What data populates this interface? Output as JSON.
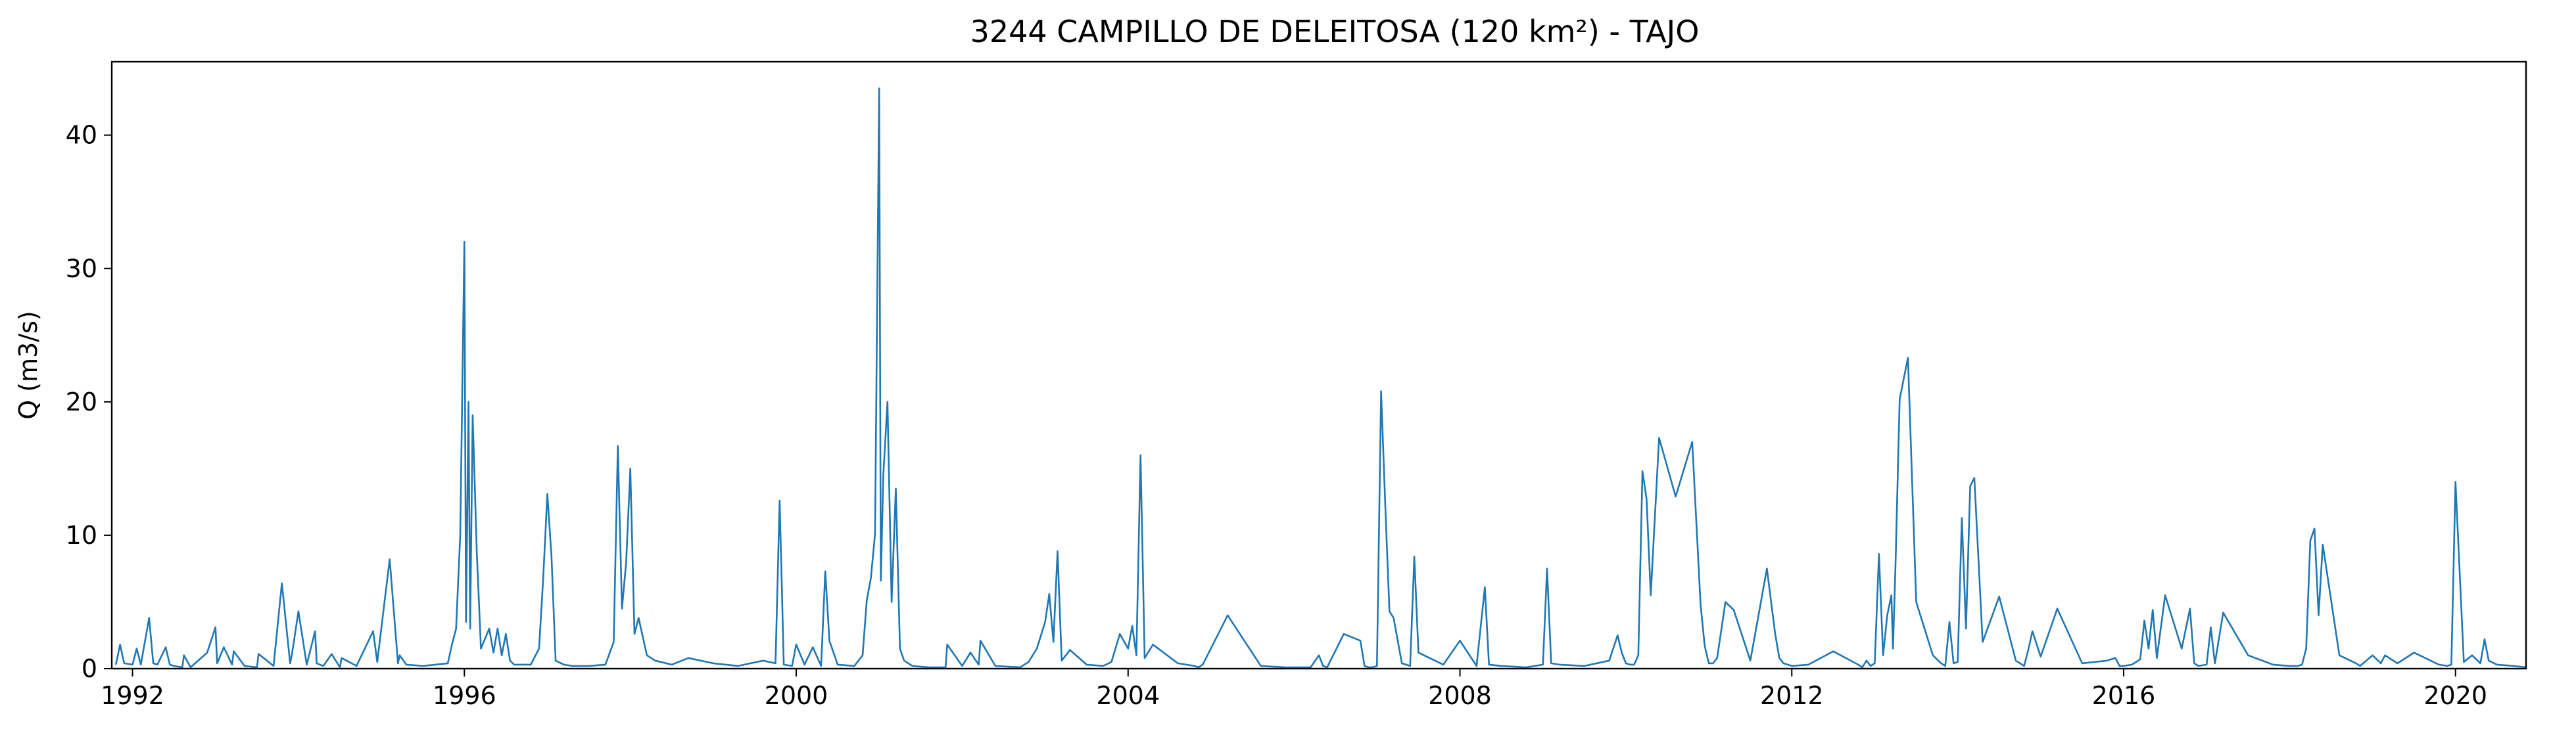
{
  "chart_data": {
    "type": "line",
    "title": "3244 CAMPILLO DE DELEITOSA (120 km²) - TAJO",
    "xlabel": "",
    "ylabel": "Q (m3/s)",
    "xlim": [
      1991.75,
      2020.85
    ],
    "ylim": [
      0,
      45.5
    ],
    "x_ticks": [
      1992,
      1996,
      2000,
      2004,
      2008,
      2012,
      2016,
      2020
    ],
    "y_ticks": [
      0,
      10,
      20,
      30,
      40
    ],
    "grid": false,
    "legend": "none",
    "color": "#1f77b4",
    "series": [
      {
        "x": [
          1991.8,
          1991.85,
          1991.9,
          1992.0,
          1992.05,
          1992.1,
          1992.2,
          1992.25,
          1992.3,
          1992.4,
          1992.45,
          1992.5,
          1992.6,
          1992.62,
          1992.7,
          1992.9,
          1993.0,
          1993.02,
          1993.1,
          1993.2,
          1993.22,
          1993.35,
          1993.5,
          1993.52,
          1993.7,
          1993.8,
          1993.9,
          1993.92,
          1994.0,
          1994.1,
          1994.2,
          1994.22,
          1994.3,
          1994.4,
          1994.5,
          1994.52,
          1994.7,
          1994.9,
          1994.95,
          1995.1,
          1995.2,
          1995.22,
          1995.3,
          1995.5,
          1995.8,
          1995.85,
          1995.9,
          1995.95,
          1996.0,
          1996.02,
          1996.05,
          1996.07,
          1996.1,
          1996.15,
          1996.2,
          1996.3,
          1996.35,
          1996.4,
          1996.45,
          1996.5,
          1996.55,
          1996.6,
          1996.8,
          1996.9,
          1996.95,
          1997.0,
          1997.05,
          1997.1,
          1997.2,
          1997.3,
          1997.5,
          1997.7,
          1997.8,
          1997.85,
          1997.9,
          1997.95,
          1998.0,
          1998.05,
          1998.1,
          1998.2,
          1998.3,
          1998.5,
          1998.7,
          1999.0,
          1999.3,
          1999.6,
          1999.75,
          1999.8,
          1999.85,
          1999.95,
          2000.0,
          2000.1,
          2000.2,
          2000.3,
          2000.35,
          2000.4,
          2000.5,
          2000.7,
          2000.8,
          2000.85,
          2000.9,
          2000.95,
          2001.0,
          2001.02,
          2001.05,
          2001.1,
          2001.15,
          2001.2,
          2001.25,
          2001.3,
          2001.4,
          2001.6,
          2001.8,
          2001.82,
          2002.0,
          2002.1,
          2002.2,
          2002.22,
          2002.4,
          2002.7,
          2002.8,
          2002.9,
          2003.0,
          2003.05,
          2003.1,
          2003.15,
          2003.2,
          2003.3,
          2003.5,
          2003.7,
          2003.8,
          2003.9,
          2004.0,
          2004.05,
          2004.1,
          2004.15,
          2004.2,
          2004.3,
          2004.6,
          2004.8,
          2004.85,
          2004.9,
          2005.2,
          2005.6,
          2005.9,
          2006.0,
          2006.2,
          2006.3,
          2006.35,
          2006.4,
          2006.6,
          2006.8,
          2006.85,
          2006.9,
          2006.95,
          2007.0,
          2007.05,
          2007.1,
          2007.15,
          2007.2,
          2007.3,
          2007.4,
          2007.45,
          2007.5,
          2007.8,
          2008.0,
          2008.2,
          2008.3,
          2008.35,
          2008.5,
          2008.8,
          2009.0,
          2009.05,
          2009.1,
          2009.2,
          2009.5,
          2009.8,
          2009.9,
          2009.95,
          2010.0,
          2010.05,
          2010.1,
          2010.15,
          2010.2,
          2010.25,
          2010.3,
          2010.4,
          2010.6,
          2010.8,
          2010.9,
          2010.95,
          2011.0,
          2011.05,
          2011.1,
          2011.2,
          2011.3,
          2011.5,
          2011.7,
          2011.8,
          2011.85,
          2011.9,
          2012.0,
          2012.2,
          2012.5,
          2012.8,
          2012.85,
          2012.9,
          2012.95,
          2013.0,
          2013.05,
          2013.1,
          2013.15,
          2013.2,
          2013.22,
          2013.25,
          2013.3,
          2013.4,
          2013.5,
          2013.7,
          2013.8,
          2013.85,
          2013.9,
          2013.95,
          2014.0,
          2014.05,
          2014.1,
          2014.15,
          2014.2,
          2014.3,
          2014.5,
          2014.7,
          2014.8,
          2014.85,
          2014.9,
          2015.0,
          2015.2,
          2015.5,
          2015.8,
          2015.9,
          2015.95,
          2016.0,
          2016.1,
          2016.2,
          2016.25,
          2016.3,
          2016.35,
          2016.4,
          2016.5,
          2016.7,
          2016.8,
          2016.85,
          2016.9,
          2017.0,
          2017.05,
          2017.1,
          2017.2,
          2017.5,
          2017.8,
          2018.0,
          2018.1,
          2018.15,
          2018.2,
          2018.25,
          2018.3,
          2018.35,
          2018.4,
          2018.6,
          2018.8,
          2018.85,
          2019.0,
          2019.1,
          2019.15,
          2019.3,
          2019.5,
          2019.8,
          2019.9,
          2019.95,
          2020.0,
          2020.1,
          2020.2,
          2020.3,
          2020.35,
          2020.4,
          2020.5,
          2020.7,
          2020.85
        ],
        "values": [
          0.3,
          1.8,
          0.4,
          0.3,
          1.5,
          0.3,
          3.8,
          0.4,
          0.3,
          1.6,
          0.3,
          0.2,
          0.1,
          1.0,
          0.1,
          1.2,
          3.1,
          0.4,
          1.6,
          0.3,
          1.3,
          0.2,
          0.1,
          1.1,
          0.2,
          6.4,
          0.4,
          1.0,
          4.3,
          0.3,
          2.8,
          0.4,
          0.2,
          1.1,
          0.1,
          0.8,
          0.2,
          2.8,
          0.5,
          8.2,
          0.4,
          1.0,
          0.3,
          0.2,
          0.4,
          1.8,
          3.0,
          10.0,
          32.0,
          3.5,
          20.0,
          3.0,
          19.0,
          8.7,
          1.5,
          3.0,
          1.2,
          3.0,
          1.0,
          2.6,
          0.6,
          0.3,
          0.3,
          1.5,
          6.8,
          13.1,
          8.4,
          0.6,
          0.3,
          0.2,
          0.2,
          0.3,
          2.0,
          16.7,
          4.5,
          8.0,
          15.0,
          2.6,
          3.8,
          1.0,
          0.6,
          0.3,
          0.8,
          0.4,
          0.2,
          0.6,
          0.4,
          12.6,
          0.3,
          0.2,
          1.8,
          0.3,
          1.6,
          0.2,
          7.3,
          2.1,
          0.3,
          0.2,
          1.0,
          5.1,
          6.8,
          10.1,
          43.5,
          6.6,
          14.5,
          20.0,
          5.0,
          13.5,
          1.5,
          0.6,
          0.2,
          0.1,
          0.1,
          1.8,
          0.2,
          1.2,
          0.3,
          2.1,
          0.2,
          0.1,
          0.5,
          1.5,
          3.5,
          5.6,
          2.0,
          8.8,
          0.6,
          1.4,
          0.3,
          0.2,
          0.5,
          2.6,
          1.5,
          3.2,
          1.0,
          16.0,
          0.8,
          1.8,
          0.4,
          0.2,
          0.1,
          0.3,
          4.0,
          0.2,
          0.1,
          0.1,
          0.1,
          1.0,
          0.2,
          0.1,
          2.6,
          2.1,
          0.2,
          0.1,
          0.1,
          0.2,
          20.8,
          12.3,
          4.3,
          3.8,
          0.4,
          0.2,
          8.4,
          1.2,
          0.3,
          2.1,
          0.2,
          6.1,
          0.3,
          0.2,
          0.1,
          0.3,
          7.5,
          0.4,
          0.3,
          0.2,
          0.6,
          2.5,
          1.2,
          0.4,
          0.3,
          0.3,
          1.0,
          14.8,
          12.7,
          5.5,
          17.3,
          12.9,
          17.0,
          4.8,
          1.7,
          0.4,
          0.4,
          0.8,
          5.0,
          4.4,
          0.6,
          7.5,
          2.6,
          0.8,
          0.4,
          0.2,
          0.3,
          1.3,
          0.3,
          0.1,
          0.6,
          0.2,
          0.4,
          8.6,
          1.0,
          4.0,
          5.5,
          1.5,
          7.8,
          20.2,
          23.3,
          5.0,
          1.0,
          0.4,
          0.2,
          3.5,
          0.4,
          0.5,
          11.3,
          3.0,
          13.7,
          14.3,
          2.0,
          5.4,
          0.6,
          0.2,
          1.4,
          2.8,
          0.9,
          4.5,
          0.4,
          0.6,
          0.8,
          0.2,
          0.2,
          0.3,
          0.7,
          3.6,
          1.5,
          4.4,
          0.8,
          5.5,
          1.5,
          4.5,
          0.4,
          0.2,
          0.3,
          3.1,
          0.4,
          4.2,
          1.0,
          0.3,
          0.2,
          0.2,
          0.3,
          1.5,
          9.6,
          10.5,
          4.0,
          9.3,
          1.0,
          0.4,
          0.2,
          1.0,
          0.4,
          1.0,
          0.4,
          1.2,
          0.3,
          0.2,
          0.3,
          14.0,
          0.5,
          1.0,
          0.4,
          2.2,
          0.6,
          0.3,
          0.2,
          0.1
        ]
      }
    ]
  }
}
